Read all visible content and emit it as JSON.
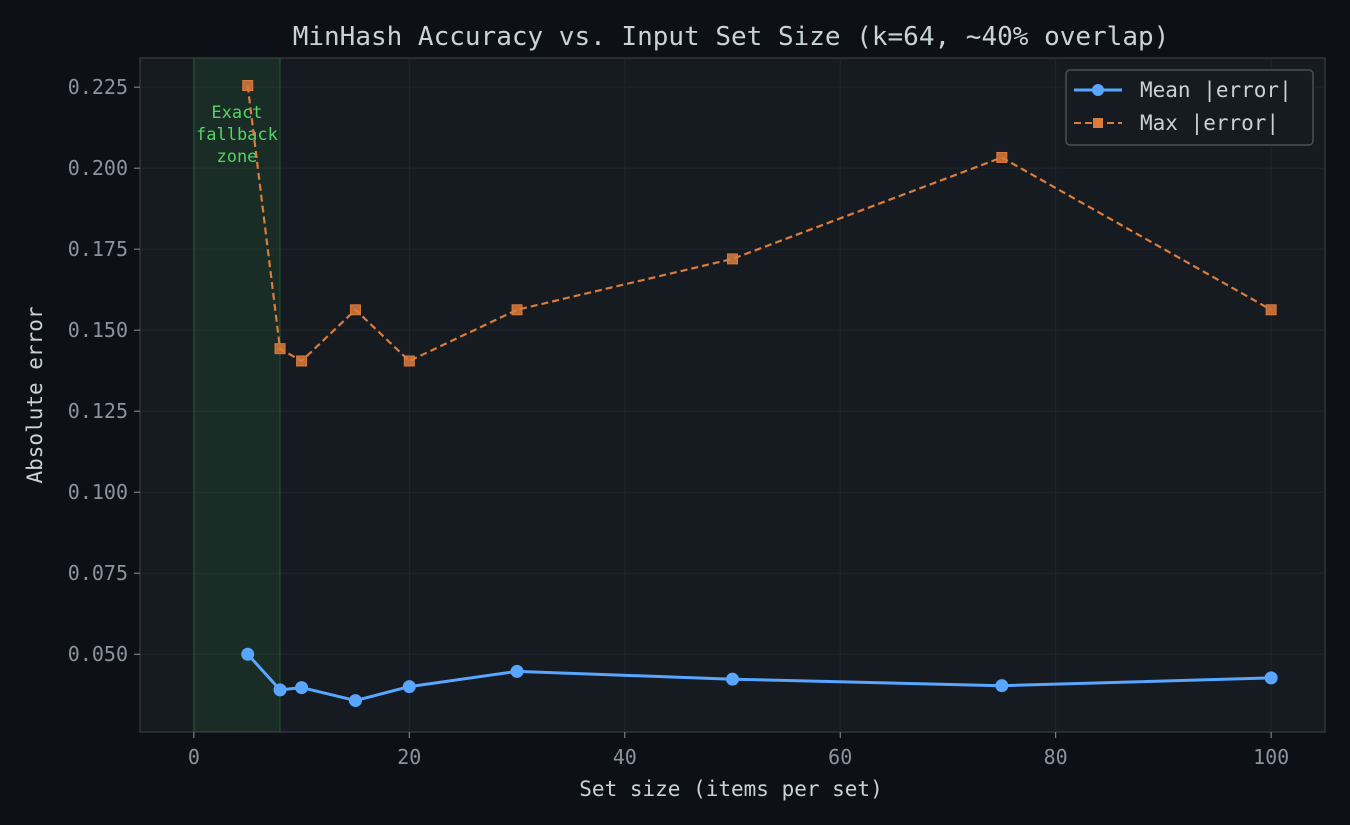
{
  "chart_data": {
    "type": "line",
    "title": "MinHash Accuracy vs. Input Set Size (k=64, ~40% overlap)",
    "xlabel": "Set size (items per set)",
    "ylabel": "Absolute error",
    "xlim": [
      -5,
      105
    ],
    "ylim": [
      0.026,
      0.234
    ],
    "xticks": [
      "0",
      "20",
      "40",
      "60",
      "80",
      "100"
    ],
    "yticks": [
      "0.050",
      "0.075",
      "0.100",
      "0.125",
      "0.150",
      "0.175",
      "0.200",
      "0.225"
    ],
    "grid": true,
    "legend_position": "top-right",
    "x": [
      5,
      8,
      10,
      15,
      20,
      30,
      50,
      75,
      100
    ],
    "series": [
      {
        "name": "Mean |error|",
        "values": [
          0.05,
          0.039,
          0.0397,
          0.0357,
          0.04,
          0.0447,
          0.0423,
          0.0403,
          0.0427
        ],
        "color": "#58a6ff",
        "marker": "circle",
        "linestyle": "solid"
      },
      {
        "name": "Max |error|",
        "values": [
          0.2255,
          0.1443,
          0.1405,
          0.1563,
          0.1405,
          0.1563,
          0.172,
          0.2033,
          0.1563
        ],
        "color": "#db7b3c",
        "marker": "square",
        "linestyle": "dashed"
      }
    ],
    "shaded_region": {
      "x_range": [
        0,
        8
      ],
      "color": "#2ea043",
      "label_lines": [
        "Exact",
        "fallback",
        "zone"
      ]
    }
  }
}
